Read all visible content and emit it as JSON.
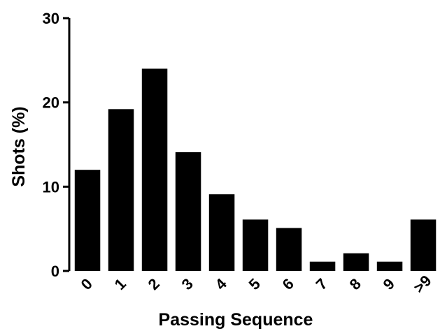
{
  "chart_data": {
    "type": "bar",
    "title": "",
    "xlabel": "Passing Sequence",
    "ylabel": "Shots (%)",
    "categories": [
      "0",
      "1",
      "2",
      "3",
      "4",
      "5",
      "6",
      "7",
      "8",
      "9",
      ">9"
    ],
    "values": [
      12,
      19.2,
      24,
      14.1,
      9.1,
      6.1,
      5.1,
      1.1,
      2.1,
      1.1,
      6.1
    ],
    "ylim": [
      0,
      30
    ],
    "yticks": [
      "0",
      "10",
      "20",
      "30"
    ],
    "grid": false,
    "legend": "none",
    "bar_color": "#000000"
  }
}
